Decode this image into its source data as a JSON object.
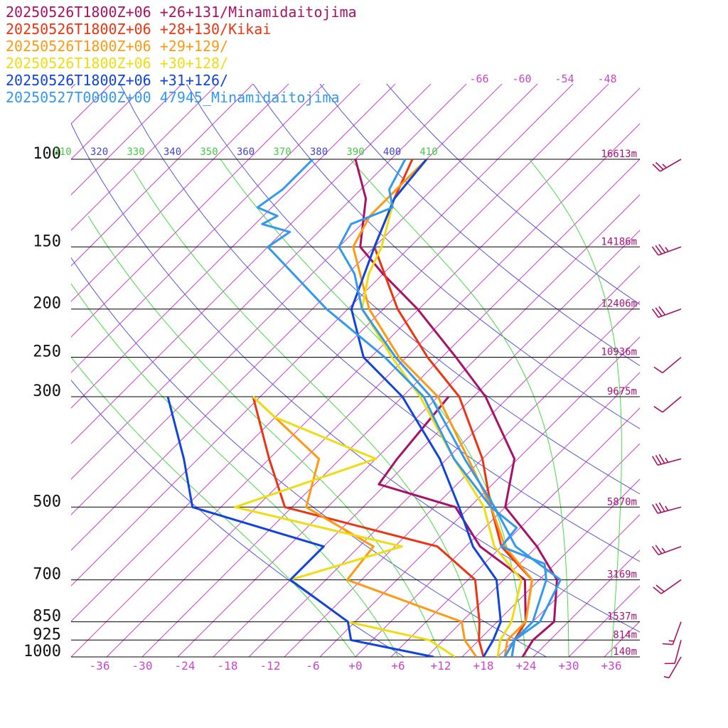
{
  "chart_data": {
    "type": "line",
    "title": "",
    "xlabel": "",
    "ylabel": "",
    "pressure_axis": {
      "levels": [
        100,
        150,
        200,
        250,
        300,
        500,
        700,
        850,
        925,
        1000
      ],
      "labels": [
        "100",
        "150",
        "200",
        "250",
        "300",
        "500",
        "700",
        "850",
        "925",
        "1000"
      ],
      "ylim": [
        1000,
        100
      ],
      "scale": "log"
    },
    "height_labels": [
      {
        "p": 100,
        "label": "16613m"
      },
      {
        "p": 150,
        "label": "14186m"
      },
      {
        "p": 200,
        "label": "12406m"
      },
      {
        "p": 250,
        "label": "10936m"
      },
      {
        "p": 300,
        "label": "9675m"
      },
      {
        "p": 500,
        "label": "5870m"
      },
      {
        "p": 700,
        "label": "3169m"
      },
      {
        "p": 850,
        "label": "1537m"
      },
      {
        "p": 925,
        "label": "814m"
      },
      {
        "p": 1000,
        "label": "140m"
      }
    ],
    "temperature_axis": {
      "ticks": [
        -36,
        -30,
        -24,
        -18,
        -12,
        -6,
        0,
        6,
        12,
        18,
        24,
        30,
        36
      ],
      "labels": [
        "-36",
        "-30",
        "-24",
        "-18",
        "-12",
        "-6",
        "+0",
        "+6",
        "+12",
        "+18",
        "+24",
        "+30",
        "+36"
      ],
      "skew": true
    },
    "upper_temp_labels": [
      "-66",
      "-60",
      "-54",
      "-48"
    ],
    "theta_labels": [
      {
        "value": "310",
        "color": "#44cc44"
      },
      {
        "value": "320",
        "color": "#4444cc"
      },
      {
        "value": "330",
        "color": "#44cc44"
      },
      {
        "value": "340",
        "color": "#4444cc"
      },
      {
        "value": "350",
        "color": "#44cc44"
      },
      {
        "value": "360",
        "color": "#4444cc"
      },
      {
        "value": "370",
        "color": "#44cc44"
      },
      {
        "value": "380",
        "color": "#4444cc"
      },
      {
        "value": "390",
        "color": "#44cc44"
      },
      {
        "value": "400",
        "color": "#4444cc"
      },
      {
        "value": "410",
        "color": "#44cc44"
      }
    ],
    "series": [
      {
        "name": "20250526T1800Z+06 +26+131/Minamidaitojima",
        "color": "#aa1166",
        "temperature": [
          {
            "p": 1000,
            "t": 23.5
          },
          {
            "p": 925,
            "t": 22.6
          },
          {
            "p": 850,
            "t": 23.0
          },
          {
            "p": 700,
            "t": 17.5
          },
          {
            "p": 600,
            "t": 10.0
          },
          {
            "p": 500,
            "t": 0.0
          },
          {
            "p": 400,
            "t": -5.5
          },
          {
            "p": 300,
            "t": -18.3
          },
          {
            "p": 250,
            "t": -28.0
          },
          {
            "p": 200,
            "t": -40.2
          },
          {
            "p": 170,
            "t": -50.0
          },
          {
            "p": 150,
            "t": -57.0
          },
          {
            "p": 120,
            "t": -63.0
          },
          {
            "p": 100,
            "t": -70.0
          }
        ],
        "dewpoint": [
          {
            "p": 1000,
            "t": 21.0
          },
          {
            "p": 925,
            "t": 20.0
          },
          {
            "p": 850,
            "t": 19.0
          },
          {
            "p": 700,
            "t": 13.0
          },
          {
            "p": 600,
            "t": 2.0
          },
          {
            "p": 500,
            "t": -7.0
          },
          {
            "p": 450,
            "t": -21.0
          },
          {
            "p": 400,
            "t": -22.0
          },
          {
            "p": 300,
            "t": -23.5
          }
        ]
      },
      {
        "name": "20250526T1800Z+06 +28+130/Kikai",
        "color": "#ee3311",
        "temperature": [
          {
            "p": 1000,
            "t": 22.0
          },
          {
            "p": 925,
            "t": 20.0
          },
          {
            "p": 850,
            "t": 19.0
          },
          {
            "p": 700,
            "t": 14.0
          },
          {
            "p": 600,
            "t": 5.0
          },
          {
            "p": 500,
            "t": -2.0
          },
          {
            "p": 400,
            "t": -10.0
          },
          {
            "p": 300,
            "t": -22.0
          },
          {
            "p": 250,
            "t": -32.0
          },
          {
            "p": 200,
            "t": -43.0
          },
          {
            "p": 150,
            "t": -55.0
          },
          {
            "p": 120,
            "t": -59.0
          },
          {
            "p": 100,
            "t": -62.0
          }
        ],
        "dewpoint": [
          {
            "p": 1000,
            "t": 18.0
          },
          {
            "p": 925,
            "t": 15.0
          },
          {
            "p": 850,
            "t": 12.5
          },
          {
            "p": 700,
            "t": 6.0
          },
          {
            "p": 600,
            "t": -4.0
          },
          {
            "p": 500,
            "t": -31.0
          },
          {
            "p": 400,
            "t": -40.0
          },
          {
            "p": 300,
            "t": -51.0
          }
        ]
      },
      {
        "name": "20250526T1800Z+06 +29+129/",
        "color": "#ff9911",
        "temperature": [
          {
            "p": 1000,
            "t": 21.0
          },
          {
            "p": 925,
            "t": 19.0
          },
          {
            "p": 850,
            "t": 19.0
          },
          {
            "p": 700,
            "t": 14.0
          },
          {
            "p": 600,
            "t": 5.5
          },
          {
            "p": 500,
            "t": -2.0
          },
          {
            "p": 400,
            "t": -12.0
          },
          {
            "p": 300,
            "t": -25.0
          },
          {
            "p": 250,
            "t": -36.0
          },
          {
            "p": 200,
            "t": -47.0
          },
          {
            "p": 150,
            "t": -58.0
          },
          {
            "p": 130,
            "t": -60.0
          },
          {
            "p": 100,
            "t": -60.0
          }
        ],
        "dewpoint": [
          {
            "p": 1000,
            "t": 17.0
          },
          {
            "p": 925,
            "t": 13.0
          },
          {
            "p": 850,
            "t": 10.0
          },
          {
            "p": 700,
            "t": -12.0
          },
          {
            "p": 600,
            "t": -13.0
          },
          {
            "p": 500,
            "t": -28.0
          },
          {
            "p": 400,
            "t": -33.0
          },
          {
            "p": 300,
            "t": -51.0
          }
        ]
      },
      {
        "name": "20250526T1800Z+06 +30+128/",
        "color": "#eedd11",
        "temperature": [
          {
            "p": 1000,
            "t": 20.0
          },
          {
            "p": 925,
            "t": 18.0
          },
          {
            "p": 850,
            "t": 17.0
          },
          {
            "p": 700,
            "t": 12.5
          },
          {
            "p": 600,
            "t": 4.0
          },
          {
            "p": 500,
            "t": -3.0
          },
          {
            "p": 400,
            "t": -14.0
          },
          {
            "p": 300,
            "t": -27.5
          },
          {
            "p": 250,
            "t": -37.0
          },
          {
            "p": 200,
            "t": -48.0
          },
          {
            "p": 170,
            "t": -52.0
          },
          {
            "p": 150,
            "t": -54.0
          },
          {
            "p": 120,
            "t": -59.0
          },
          {
            "p": 100,
            "t": -60.0
          }
        ],
        "dewpoint": [
          {
            "p": 1000,
            "t": 14.0
          },
          {
            "p": 925,
            "t": 8.0
          },
          {
            "p": 850,
            "t": -6.0
          },
          {
            "p": 700,
            "t": -20.0
          },
          {
            "p": 600,
            "t": -9.0
          },
          {
            "p": 500,
            "t": -38.0
          },
          {
            "p": 400,
            "t": -25.0
          },
          {
            "p": 330,
            "t": -45.0
          },
          {
            "p": 300,
            "t": -51.0
          }
        ]
      },
      {
        "name": "20250526T1800Z+06 +31+126/",
        "color": "#1144dd",
        "temperature": [
          {
            "p": 1000,
            "t": 18.0
          },
          {
            "p": 925,
            "t": 17.0
          },
          {
            "p": 850,
            "t": 15.5
          },
          {
            "p": 700,
            "t": 9.0
          },
          {
            "p": 600,
            "t": 1.0
          },
          {
            "p": 500,
            "t": -6.5
          },
          {
            "p": 400,
            "t": -16.0
          },
          {
            "p": 300,
            "t": -30.0
          },
          {
            "p": 250,
            "t": -41.0
          },
          {
            "p": 200,
            "t": -49.5
          },
          {
            "p": 150,
            "t": -55.0
          },
          {
            "p": 120,
            "t": -59.0
          },
          {
            "p": 100,
            "t": -60.0
          }
        ],
        "dewpoint": [
          {
            "p": 1000,
            "t": 11.0
          },
          {
            "p": 925,
            "t": -3.0
          },
          {
            "p": 850,
            "t": -6.0
          },
          {
            "p": 700,
            "t": -20.0
          },
          {
            "p": 600,
            "t": -20.0
          },
          {
            "p": 500,
            "t": -44.0
          },
          {
            "p": 400,
            "t": -52.0
          },
          {
            "p": 300,
            "t": -63.0
          }
        ]
      },
      {
        "name": "20250527T0000Z+00 47945_Minamidaitojima",
        "color": "#3399ee",
        "temperature": [
          {
            "p": 1000,
            "t": 22.0
          },
          {
            "p": 925,
            "t": 20.0
          },
          {
            "p": 850,
            "t": 21.0
          },
          {
            "p": 700,
            "t": 18.0
          },
          {
            "p": 600,
            "t": 7.0
          },
          {
            "p": 500,
            "t": -1.5
          },
          {
            "p": 400,
            "t": -12.5
          },
          {
            "p": 300,
            "t": -26.0
          },
          {
            "p": 250,
            "t": -36.5
          },
          {
            "p": 200,
            "t": -48.0
          },
          {
            "p": 170,
            "t": -54.0
          },
          {
            "p": 150,
            "t": -60.0
          },
          {
            "p": 135,
            "t": -61.5
          },
          {
            "p": 125,
            "t": -58.0
          },
          {
            "p": 115,
            "t": -61.0
          },
          {
            "p": 100,
            "t": -63.0
          }
        ],
        "dewpoint": [
          {
            "p": 1000,
            "t": 21.0
          },
          {
            "p": 925,
            "t": 20.0
          },
          {
            "p": 850,
            "t": 20.0
          },
          {
            "p": 700,
            "t": 16.0
          },
          {
            "p": 650,
            "t": 13.5
          },
          {
            "p": 600,
            "t": 5.0
          },
          {
            "p": 550,
            "t": 4.5
          },
          {
            "p": 500,
            "t": -2.0
          },
          {
            "p": 400,
            "t": -14.0
          },
          {
            "p": 300,
            "t": -27.0
          },
          {
            "p": 250,
            "t": -38.0
          },
          {
            "p": 200,
            "t": -53.0
          },
          {
            "p": 150,
            "t": -70.0
          },
          {
            "p": 140,
            "t": -69.0
          },
          {
            "p": 135,
            "t": -74.0
          },
          {
            "p": 130,
            "t": -73.0
          },
          {
            "p": 125,
            "t": -77.0
          },
          {
            "p": 115,
            "t": -76.0
          },
          {
            "p": 100,
            "t": -76.0
          }
        ]
      }
    ],
    "wind_barbs": [
      {
        "p": 100,
        "speed_kt": 25,
        "dir_deg": 240
      },
      {
        "p": 150,
        "speed_kt": 35,
        "dir_deg": 250
      },
      {
        "p": 200,
        "speed_kt": 30,
        "dir_deg": 250
      },
      {
        "p": 250,
        "speed_kt": 10,
        "dir_deg": 230
      },
      {
        "p": 300,
        "speed_kt": 10,
        "dir_deg": 230
      },
      {
        "p": 400,
        "speed_kt": 35,
        "dir_deg": 255
      },
      {
        "p": 500,
        "speed_kt": 35,
        "dir_deg": 255
      },
      {
        "p": 600,
        "speed_kt": 25,
        "dir_deg": 250
      },
      {
        "p": 700,
        "speed_kt": 20,
        "dir_deg": 235
      },
      {
        "p": 850,
        "speed_kt": 15,
        "dir_deg": 200
      },
      {
        "p": 925,
        "speed_kt": 10,
        "dir_deg": 195
      },
      {
        "p": 1000,
        "speed_kt": 5,
        "dir_deg": 210
      }
    ],
    "colors": {
      "isobar": "#000000",
      "isotherm": "#cc44cc",
      "dry_adiabat": "#5555dd",
      "moist_adiabat": "#44dd44",
      "barb": "#aa1166"
    }
  }
}
